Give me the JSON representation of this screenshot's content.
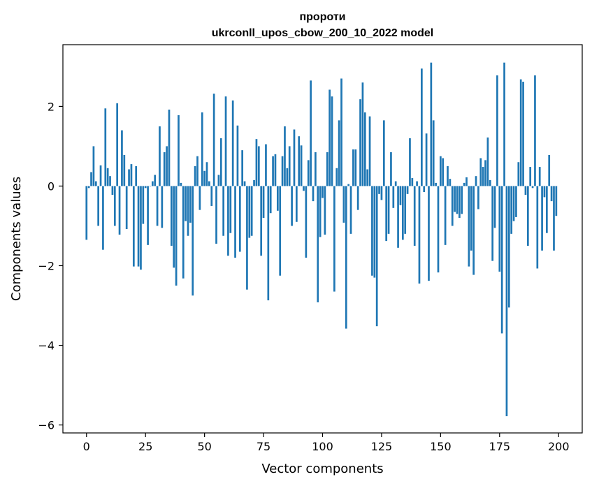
{
  "chart_data": {
    "type": "bar",
    "title_line1": "пророти",
    "title_line2": "ukrconll_upos_cbow_200_10_2022 model",
    "xlabel": "Vector components",
    "ylabel": "Components values",
    "xlim": [
      -10,
      210
    ],
    "ylim": [
      -6.2,
      3.55
    ],
    "xticks": [
      0,
      25,
      50,
      75,
      100,
      125,
      150,
      175,
      200
    ],
    "xtick_labels": [
      "0",
      "25",
      "50",
      "75",
      "100",
      "125",
      "150",
      "175",
      "200"
    ],
    "yticks": [
      2,
      0,
      -2,
      -4,
      -6
    ],
    "ytick_labels": [
      "2",
      "0",
      "−2",
      "−4",
      "−6"
    ],
    "grid": false,
    "bar_color": "#1f77b4",
    "values": [
      -1.35,
      -0.05,
      0.35,
      1.0,
      0.12,
      -1.0,
      0.52,
      -1.6,
      1.95,
      0.45,
      0.25,
      -0.22,
      -1.0,
      2.08,
      -1.22,
      1.4,
      0.78,
      -1.08,
      0.42,
      0.55,
      -2.02,
      0.5,
      -2.02,
      -2.1,
      -0.95,
      -0.05,
      -1.48,
      0.0,
      0.12,
      0.28,
      -1.0,
      1.5,
      -1.05,
      0.85,
      1.0,
      1.92,
      -1.5,
      -2.05,
      -2.5,
      1.78,
      0.08,
      -2.32,
      -0.88,
      -1.25,
      -0.92,
      -2.75,
      0.5,
      0.75,
      -0.6,
      1.85,
      0.38,
      0.6,
      0.12,
      -0.5,
      2.32,
      -1.45,
      0.28,
      1.2,
      -1.25,
      2.25,
      -1.75,
      -1.18,
      2.15,
      -1.8,
      1.52,
      -1.65,
      0.9,
      0.12,
      -2.6,
      -1.3,
      -1.25,
      0.15,
      1.18,
      1.0,
      -1.75,
      -0.8,
      1.05,
      -2.87,
      -0.68,
      0.75,
      0.8,
      -0.62,
      -2.25,
      0.75,
      1.5,
      0.45,
      1.0,
      -1.0,
      1.42,
      -0.9,
      1.25,
      1.02,
      -0.12,
      -1.8,
      0.65,
      2.65,
      -0.38,
      0.85,
      -2.92,
      -1.28,
      -0.3,
      -1.22,
      0.85,
      2.42,
      2.25,
      -2.65,
      0.45,
      1.65,
      2.7,
      -0.92,
      -3.58,
      0.05,
      -1.2,
      0.92,
      0.92,
      -0.6,
      2.18,
      2.6,
      1.85,
      0.42,
      1.75,
      -2.25,
      -2.3,
      -3.52,
      -0.2,
      -0.35,
      1.65,
      -1.38,
      -1.2,
      0.85,
      -0.55,
      0.12,
      -1.55,
      -0.48,
      -1.35,
      -1.2,
      -0.2,
      1.2,
      0.2,
      -1.5,
      0.12,
      -2.45,
      2.95,
      -0.15,
      1.32,
      -2.38,
      3.1,
      1.65,
      0.08,
      -2.17,
      0.75,
      0.7,
      -1.48,
      0.5,
      0.18,
      -1.0,
      -0.65,
      -0.7,
      -0.8,
      -0.7,
      0.08,
      0.22,
      -2.02,
      -1.62,
      -2.23,
      0.25,
      -0.58,
      0.7,
      0.48,
      0.65,
      1.22,
      0.15,
      -1.88,
      -1.05,
      2.78,
      -2.15,
      -3.7,
      3.1,
      -5.78,
      -3.05,
      -1.2,
      -0.88,
      -0.78,
      0.6,
      2.68,
      2.62,
      -0.22,
      -1.5,
      0.48,
      -0.05,
      2.78,
      -2.07,
      0.48,
      -1.62,
      -0.28,
      -1.18,
      0.78,
      -0.38,
      -1.62,
      -0.75
    ]
  }
}
